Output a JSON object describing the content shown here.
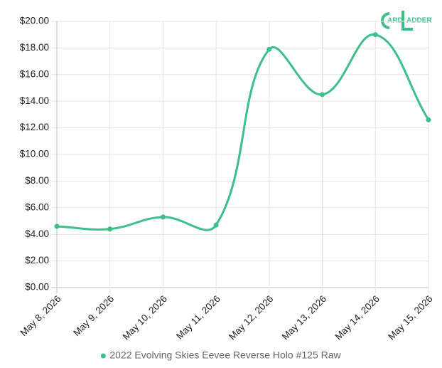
{
  "chart_data": {
    "type": "line",
    "logo": {
      "left": "ARD",
      "right": "ADDER"
    },
    "categories": [
      "May 8, 2026",
      "May 9, 2026",
      "May 10, 2026",
      "May 11, 2026",
      "May 12, 2026",
      "May 13, 2026",
      "May 14, 2026",
      "May 15, 2026"
    ],
    "series": [
      {
        "name": "2022 Evolving Skies Eevee Reverse Holo #125 Raw",
        "color": "#3dbf88",
        "values": [
          4.6,
          4.4,
          5.3,
          4.7,
          17.9,
          14.5,
          19.0,
          12.6
        ]
      }
    ],
    "ylim": [
      0,
      20
    ],
    "yticks": [
      {
        "value": 0,
        "label": "$0.00"
      },
      {
        "value": 2,
        "label": "$2.00"
      },
      {
        "value": 4,
        "label": "$4.00"
      },
      {
        "value": 6,
        "label": "$6.00"
      },
      {
        "value": 8,
        "label": "$8.00"
      },
      {
        "value": 10,
        "label": "$10.00"
      },
      {
        "value": 12,
        "label": "$12.00"
      },
      {
        "value": 14,
        "label": "$14.00"
      },
      {
        "value": 16,
        "label": "$16.00"
      },
      {
        "value": 18,
        "label": "$18.00"
      },
      {
        "value": 20,
        "label": "$20.00"
      }
    ],
    "grid": true,
    "legend": "bottom"
  }
}
